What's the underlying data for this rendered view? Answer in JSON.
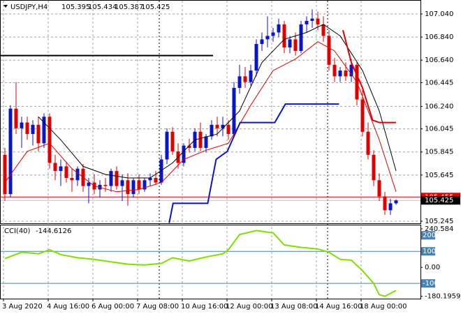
{
  "chart_data": [
    {
      "type": "candlestick",
      "title": "USDJPY,H4",
      "last": {
        "open": 105.395,
        "high": 105.434,
        "low": 105.387,
        "close": 105.425
      },
      "up_color": "#0a14c8",
      "down_color": "#e00000",
      "open": [
        105.82,
        105.48,
        106.22,
        106.05,
        106.1,
        106.0,
        106.08,
        105.92,
        106.15,
        105.75,
        105.68,
        105.72,
        105.62,
        105.6,
        105.7,
        105.55,
        105.58,
        105.52,
        105.56,
        105.55,
        105.68,
        105.55,
        105.6,
        105.48,
        105.6,
        105.52,
        105.6,
        105.62,
        105.58,
        105.78,
        106.02,
        105.85,
        105.75,
        105.9,
        105.88,
        106.02,
        105.88,
        105.98,
        106.08,
        106.05,
        106.08,
        106.0,
        106.4,
        106.5,
        106.45,
        106.55,
        106.78,
        106.82,
        106.85,
        106.88,
        106.95,
        106.75,
        106.82,
        106.72,
        106.95,
        106.98,
        107.0,
        106.95,
        106.85,
        106.6,
        106.5,
        106.55,
        106.5,
        106.6,
        106.3,
        106.02,
        105.82,
        105.6,
        105.46,
        105.34,
        105.4
      ],
      "high": [
        105.88,
        106.25,
        106.45,
        106.15,
        106.15,
        106.12,
        106.15,
        106.18,
        106.18,
        105.82,
        105.78,
        105.76,
        105.7,
        105.72,
        105.74,
        105.62,
        105.65,
        105.6,
        105.62,
        105.7,
        105.72,
        105.65,
        105.66,
        105.62,
        105.65,
        105.62,
        105.66,
        105.68,
        105.82,
        106.05,
        106.06,
        105.92,
        105.92,
        105.96,
        106.05,
        106.1,
        106.0,
        106.12,
        106.15,
        106.15,
        106.12,
        106.45,
        106.6,
        106.58,
        106.6,
        106.82,
        106.88,
        107.02,
        106.92,
        107.0,
        106.98,
        106.85,
        106.88,
        106.98,
        107.02,
        107.08,
        107.06,
        107.02,
        106.9,
        106.66,
        106.58,
        106.62,
        106.65,
        106.62,
        106.38,
        106.1,
        105.86,
        105.66,
        105.5,
        105.44,
        105.434
      ],
      "low": [
        105.42,
        105.45,
        106.0,
        105.88,
        105.95,
        105.9,
        105.85,
        105.88,
        105.7,
        105.6,
        105.55,
        105.58,
        105.5,
        105.55,
        105.5,
        105.4,
        105.48,
        105.45,
        105.5,
        105.5,
        105.52,
        105.42,
        105.38,
        105.45,
        105.48,
        105.5,
        105.55,
        105.56,
        105.56,
        105.74,
        105.82,
        105.7,
        105.72,
        105.84,
        105.85,
        105.85,
        105.84,
        105.95,
        105.98,
        105.98,
        105.95,
        105.98,
        106.35,
        106.4,
        106.42,
        106.5,
        106.72,
        106.75,
        106.8,
        106.84,
        106.7,
        106.7,
        106.68,
        106.7,
        106.88,
        106.92,
        106.9,
        106.8,
        106.55,
        106.45,
        106.45,
        106.46,
        106.45,
        106.25,
        105.98,
        105.78,
        105.55,
        105.42,
        105.3,
        105.3,
        105.387
      ],
      "close": [
        105.48,
        106.22,
        106.05,
        106.1,
        106.0,
        106.08,
        105.92,
        106.15,
        105.75,
        105.68,
        105.72,
        105.62,
        105.6,
        105.7,
        105.55,
        105.58,
        105.52,
        105.56,
        105.55,
        105.68,
        105.55,
        105.6,
        105.48,
        105.6,
        105.52,
        105.6,
        105.62,
        105.58,
        105.78,
        106.02,
        105.85,
        105.75,
        105.9,
        105.88,
        106.02,
        105.88,
        105.98,
        106.08,
        106.05,
        106.08,
        106.0,
        106.4,
        106.5,
        106.45,
        106.55,
        106.78,
        106.82,
        106.85,
        106.88,
        106.95,
        106.75,
        106.82,
        106.72,
        106.95,
        106.98,
        107.0,
        106.95,
        106.85,
        106.6,
        106.5,
        106.55,
        106.5,
        106.6,
        106.3,
        106.02,
        105.82,
        105.6,
        105.46,
        105.34,
        105.4,
        105.425
      ],
      "overlays": [
        {
          "color": "#000000",
          "x": [
            6,
            10,
            14,
            18,
            22,
            26,
            30,
            34,
            38,
            42,
            46,
            50,
            54,
            57,
            60,
            64,
            67,
            70
          ],
          "values": [
            106.15,
            105.95,
            105.72,
            105.65,
            105.62,
            105.62,
            105.75,
            105.95,
            106.0,
            106.2,
            106.62,
            106.82,
            106.88,
            106.95,
            106.85,
            106.55,
            106.2,
            105.68
          ]
        },
        {
          "color": "#e00000",
          "x": [
            0,
            4,
            8,
            12,
            16,
            20,
            24,
            28,
            32,
            36,
            40,
            44,
            48,
            52,
            56,
            59,
            63,
            67,
            70
          ],
          "values": [
            105.58,
            105.85,
            105.92,
            105.7,
            105.55,
            105.5,
            105.52,
            105.58,
            105.78,
            105.86,
            105.92,
            106.25,
            106.55,
            106.65,
            106.8,
            106.72,
            106.45,
            105.95,
            105.5
          ]
        },
        {
          "color": "#0a14c8",
          "x": [
            29.4,
            30.1,
            36.3,
            37.8,
            39.8,
            42.1,
            48.3,
            50.2,
            59.8
          ],
          "values": [
            105.23,
            105.4,
            105.4,
            105.78,
            105.85,
            106.1,
            106.1,
            106.26,
            106.26
          ]
        },
        {
          "color": "#e00000",
          "x": [
            60.5,
            62,
            64,
            65.8,
            67,
            70
          ],
          "values": [
            106.9,
            106.62,
            106.4,
            106.12,
            106.1,
            106.1
          ]
        }
      ],
      "hline": {
        "value": 106.68,
        "x_end": 37.25,
        "color": "#000000"
      },
      "alert_level": {
        "value": 105.455,
        "color": "#e00000"
      },
      "xlim": [
        -0.875,
        74.375
      ],
      "ylim": [
        105.227,
        107.155
      ],
      "yticks": [
        {
          "value": 107.04,
          "label": "107.040"
        },
        {
          "value": 106.84,
          "label": "106.840"
        },
        {
          "value": 106.64,
          "label": "106.640"
        },
        {
          "value": 106.445,
          "label": "106.445"
        },
        {
          "value": 106.24,
          "label": "106.240"
        },
        {
          "value": 106.045,
          "label": "106.045"
        },
        {
          "value": 105.845,
          "label": "105.845"
        },
        {
          "value": 105.645,
          "label": "105.645"
        },
        {
          "value": 105.245,
          "label": "105.245"
        }
      ],
      "xticks": [
        {
          "value": -0.25,
          "label": "3 Aug 2020"
        },
        {
          "value": 7.75,
          "label": "4 Aug 16:00"
        },
        {
          "value": 15.75,
          "label": "6 Aug 00:00"
        },
        {
          "value": 23.75,
          "label": "7 Aug 08:00"
        },
        {
          "value": 31.75,
          "label": "10 Aug 16:00"
        },
        {
          "value": 39.75,
          "label": "12 Aug 00:00"
        },
        {
          "value": 47.75,
          "label": "13 Aug 08:00"
        },
        {
          "value": 55.75,
          "label": "14 Aug 16:00"
        },
        {
          "value": 63.75,
          "label": "18 Aug 00:00"
        }
      ],
      "grid": true
    },
    {
      "type": "line",
      "title": "CCI(40)",
      "last_value": -144.6126,
      "color": "#7fe000",
      "x": [
        0,
        3,
        6,
        8,
        10,
        13,
        16,
        19,
        22,
        25,
        28,
        30,
        33,
        36,
        39,
        40,
        42,
        45,
        48,
        50,
        53,
        56,
        58,
        60,
        62,
        64,
        66,
        67,
        68,
        70
      ],
      "values": [
        55,
        95,
        85,
        110,
        80,
        60,
        50,
        35,
        20,
        15,
        25,
        60,
        40,
        65,
        85,
        110,
        205,
        230,
        215,
        140,
        125,
        115,
        95,
        50,
        45,
        -20,
        -100,
        -170,
        -180.1959,
        -144.6126
      ],
      "xlim": [
        -0.875,
        74.375
      ],
      "ylim": [
        -195,
        262
      ],
      "yticks": [
        240.584,
        200,
        100,
        {
          "value": 0,
          "label": "0.00"
        },
        -100,
        -180.1959
      ],
      "levels": [
        100,
        -100
      ],
      "level_color": "#4682b4"
    }
  ]
}
